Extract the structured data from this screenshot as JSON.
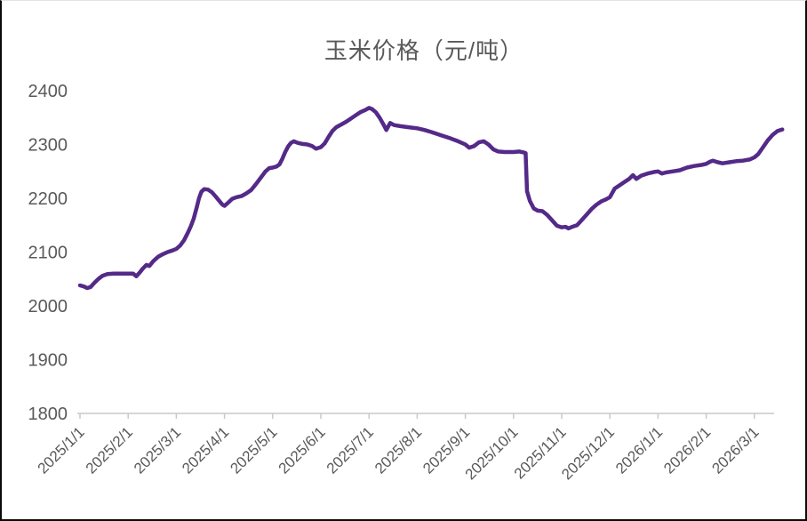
{
  "title": "玉米价格（元/吨）",
  "colors": {
    "line": "#542A88",
    "title_text": "#595959",
    "axis_text": "#595959",
    "axis_line": "#D6D6D6",
    "tick_mark": "#C9C9C9",
    "background": "#FFFFFF"
  },
  "chart_data": {
    "type": "line",
    "title": "玉米价格（元/吨）",
    "xlabel": "",
    "ylabel": "",
    "grid": "off",
    "legend": "none",
    "ylim": [
      1800,
      2400
    ],
    "y_ticks": [
      1800,
      1900,
      2000,
      2100,
      2200,
      2300,
      2400
    ],
    "x_tick_labels": [
      "2025/1/1",
      "2025/2/1",
      "2025/3/1",
      "2025/4/1",
      "2025/5/1",
      "2025/6/1",
      "2025/7/1",
      "2025/8/1",
      "2025/9/1",
      "2025/10/1",
      "2025/11/1",
      "2025/12/1",
      "2026/1/1",
      "2026/2/1",
      "2026/3/1"
    ],
    "x_unit": "months since 2025/1/1",
    "series": [
      {
        "name": "玉米价格",
        "color": "#542A88",
        "points": [
          [
            0.0,
            2038
          ],
          [
            0.08,
            2036
          ],
          [
            0.15,
            2033
          ],
          [
            0.22,
            2035
          ],
          [
            0.3,
            2043
          ],
          [
            0.38,
            2050
          ],
          [
            0.47,
            2056
          ],
          [
            0.57,
            2059
          ],
          [
            0.7,
            2060
          ],
          [
            0.85,
            2060
          ],
          [
            1.0,
            2060
          ],
          [
            1.1,
            2060
          ],
          [
            1.17,
            2055
          ],
          [
            1.24,
            2062
          ],
          [
            1.3,
            2069
          ],
          [
            1.38,
            2076
          ],
          [
            1.44,
            2074
          ],
          [
            1.52,
            2083
          ],
          [
            1.62,
            2091
          ],
          [
            1.72,
            2096
          ],
          [
            1.82,
            2100
          ],
          [
            1.92,
            2103
          ],
          [
            2.0,
            2106
          ],
          [
            2.08,
            2112
          ],
          [
            2.16,
            2122
          ],
          [
            2.24,
            2136
          ],
          [
            2.3,
            2148
          ],
          [
            2.36,
            2162
          ],
          [
            2.42,
            2182
          ],
          [
            2.47,
            2200
          ],
          [
            2.52,
            2212
          ],
          [
            2.58,
            2217
          ],
          [
            2.66,
            2216
          ],
          [
            2.74,
            2211
          ],
          [
            2.82,
            2203
          ],
          [
            2.9,
            2194
          ],
          [
            2.96,
            2188
          ],
          [
            3.0,
            2186
          ],
          [
            3.08,
            2192
          ],
          [
            3.16,
            2199
          ],
          [
            3.25,
            2202
          ],
          [
            3.35,
            2204
          ],
          [
            3.45,
            2209
          ],
          [
            3.55,
            2215
          ],
          [
            3.65,
            2226
          ],
          [
            3.75,
            2238
          ],
          [
            3.85,
            2250
          ],
          [
            3.93,
            2256
          ],
          [
            4.0,
            2257
          ],
          [
            4.08,
            2259
          ],
          [
            4.14,
            2263
          ],
          [
            4.2,
            2273
          ],
          [
            4.26,
            2286
          ],
          [
            4.32,
            2296
          ],
          [
            4.38,
            2303
          ],
          [
            4.44,
            2306
          ],
          [
            4.52,
            2303
          ],
          [
            4.62,
            2301
          ],
          [
            4.72,
            2300
          ],
          [
            4.82,
            2297
          ],
          [
            4.9,
            2292
          ],
          [
            5.0,
            2295
          ],
          [
            5.08,
            2302
          ],
          [
            5.16,
            2314
          ],
          [
            5.24,
            2325
          ],
          [
            5.32,
            2332
          ],
          [
            5.42,
            2337
          ],
          [
            5.52,
            2342
          ],
          [
            5.62,
            2348
          ],
          [
            5.72,
            2354
          ],
          [
            5.82,
            2360
          ],
          [
            5.92,
            2364
          ],
          [
            6.0,
            2368
          ],
          [
            6.06,
            2366
          ],
          [
            6.14,
            2360
          ],
          [
            6.22,
            2350
          ],
          [
            6.3,
            2337
          ],
          [
            6.36,
            2327
          ],
          [
            6.44,
            2340
          ],
          [
            6.52,
            2336
          ],
          [
            6.65,
            2334
          ],
          [
            6.82,
            2332
          ],
          [
            7.0,
            2330
          ],
          [
            7.15,
            2327
          ],
          [
            7.3,
            2323
          ],
          [
            7.5,
            2317
          ],
          [
            7.7,
            2311
          ],
          [
            7.85,
            2306
          ],
          [
            8.0,
            2300
          ],
          [
            8.08,
            2294
          ],
          [
            8.18,
            2297
          ],
          [
            8.28,
            2304
          ],
          [
            8.38,
            2306
          ],
          [
            8.48,
            2300
          ],
          [
            8.58,
            2291
          ],
          [
            8.68,
            2287
          ],
          [
            8.82,
            2286
          ],
          [
            9.0,
            2286
          ],
          [
            9.12,
            2287
          ],
          [
            9.22,
            2285
          ],
          [
            9.25,
            2284
          ],
          [
            9.28,
            2213
          ],
          [
            9.34,
            2195
          ],
          [
            9.42,
            2181
          ],
          [
            9.5,
            2177
          ],
          [
            9.6,
            2176
          ],
          [
            9.7,
            2169
          ],
          [
            9.8,
            2159
          ],
          [
            9.9,
            2149
          ],
          [
            10.0,
            2146
          ],
          [
            10.08,
            2147
          ],
          [
            10.14,
            2144
          ],
          [
            10.22,
            2147
          ],
          [
            10.32,
            2150
          ],
          [
            10.42,
            2160
          ],
          [
            10.52,
            2170
          ],
          [
            10.62,
            2180
          ],
          [
            10.72,
            2188
          ],
          [
            10.82,
            2194
          ],
          [
            10.92,
            2198
          ],
          [
            11.0,
            2202
          ],
          [
            11.1,
            2218
          ],
          [
            11.2,
            2224
          ],
          [
            11.3,
            2230
          ],
          [
            11.4,
            2236
          ],
          [
            11.48,
            2243
          ],
          [
            11.55,
            2236
          ],
          [
            11.65,
            2242
          ],
          [
            11.78,
            2246
          ],
          [
            11.92,
            2249
          ],
          [
            12.0,
            2250
          ],
          [
            12.08,
            2246
          ],
          [
            12.16,
            2248
          ],
          [
            12.3,
            2250
          ],
          [
            12.45,
            2252
          ],
          [
            12.6,
            2257
          ],
          [
            12.75,
            2260
          ],
          [
            12.9,
            2262
          ],
          [
            13.0,
            2264
          ],
          [
            13.08,
            2268
          ],
          [
            13.14,
            2270
          ],
          [
            13.24,
            2267
          ],
          [
            13.34,
            2265
          ],
          [
            13.48,
            2267
          ],
          [
            13.62,
            2269
          ],
          [
            13.76,
            2270
          ],
          [
            13.9,
            2272
          ],
          [
            14.0,
            2276
          ],
          [
            14.08,
            2282
          ],
          [
            14.18,
            2295
          ],
          [
            14.28,
            2308
          ],
          [
            14.38,
            2318
          ],
          [
            14.48,
            2325
          ],
          [
            14.58,
            2328
          ]
        ]
      }
    ]
  }
}
